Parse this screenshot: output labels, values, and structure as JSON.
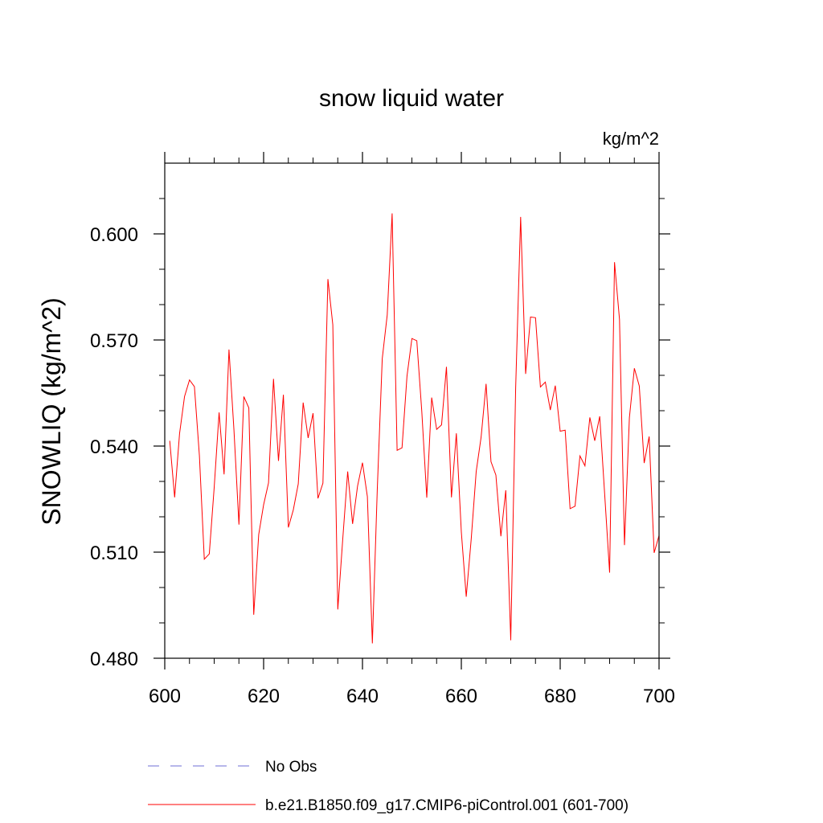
{
  "chart_data": {
    "type": "line",
    "title": "snow liquid water",
    "units_label": "kg/m^2",
    "ylabel": "SNOWLIQ  (kg/m^2)",
    "xlabel": "",
    "xlim": [
      600,
      700
    ],
    "ylim": [
      0.48,
      0.62
    ],
    "x_ticks": [
      600,
      620,
      640,
      660,
      680,
      700
    ],
    "x_tick_labels": [
      "600",
      "620",
      "640",
      "660",
      "680",
      "700"
    ],
    "y_ticks": [
      0.48,
      0.51,
      0.54,
      0.57,
      0.6
    ],
    "y_tick_labels": [
      "0.480",
      "0.510",
      "0.540",
      "0.570",
      "0.600"
    ],
    "grid": false,
    "legend_position": "bottom",
    "series": [
      {
        "name": "b.e21.B1850.f09_g17.CMIP6-piControl.001 (601-700)",
        "color": "#ff0000",
        "style": "solid",
        "x": [
          601,
          602,
          603,
          604,
          605,
          606,
          607,
          608,
          609,
          610,
          611,
          612,
          613,
          614,
          615,
          616,
          617,
          618,
          619,
          620,
          621,
          622,
          623,
          624,
          625,
          626,
          627,
          628,
          629,
          630,
          631,
          632,
          633,
          634,
          635,
          636,
          637,
          638,
          639,
          640,
          641,
          642,
          643,
          644,
          645,
          646,
          647,
          648,
          649,
          650,
          651,
          652,
          653,
          654,
          655,
          656,
          657,
          658,
          659,
          660,
          661,
          662,
          663,
          664,
          665,
          666,
          667,
          668,
          669,
          670,
          671,
          672,
          673,
          674,
          675,
          676,
          677,
          678,
          679,
          680,
          681,
          682,
          683,
          684,
          685,
          686,
          687,
          688,
          689,
          690,
          691,
          692,
          693,
          694,
          695,
          696,
          697,
          698,
          699,
          700
        ],
        "y": [
          0.5415,
          0.5255,
          0.5435,
          0.554,
          0.5587,
          0.5568,
          0.5373,
          0.508,
          0.5095,
          0.5283,
          0.5495,
          0.532,
          0.5673,
          0.5445,
          0.5178,
          0.554,
          0.5508,
          0.4923,
          0.515,
          0.5234,
          0.5296,
          0.559,
          0.5358,
          0.5545,
          0.517,
          0.5219,
          0.5293,
          0.5523,
          0.5423,
          0.5493,
          0.5252,
          0.5295,
          0.5872,
          0.5743,
          0.4938,
          0.5135,
          0.5328,
          0.518,
          0.5287,
          0.5353,
          0.5257,
          0.4842,
          0.5276,
          0.5647,
          0.5771,
          0.6058,
          0.5388,
          0.5395,
          0.5598,
          0.5704,
          0.5698,
          0.5498,
          0.5254,
          0.5537,
          0.5447,
          0.546,
          0.5624,
          0.5255,
          0.5436,
          0.5157,
          0.4974,
          0.5137,
          0.5328,
          0.5425,
          0.5576,
          0.5356,
          0.5318,
          0.5145,
          0.5275,
          0.4851,
          0.5564,
          0.6048,
          0.5604,
          0.5765,
          0.5763,
          0.5567,
          0.5581,
          0.5502,
          0.5571,
          0.5442,
          0.5445,
          0.5223,
          0.523,
          0.5372,
          0.5344,
          0.5481,
          0.5415,
          0.5484,
          0.5262,
          0.5042,
          0.592,
          0.5758,
          0.512,
          0.548,
          0.562,
          0.557,
          0.5352,
          0.5427,
          0.5098,
          0.5147
        ]
      },
      {
        "name": "No Obs",
        "color": "#6f6fd6",
        "style": "dashed",
        "x": [],
        "y": []
      }
    ]
  }
}
